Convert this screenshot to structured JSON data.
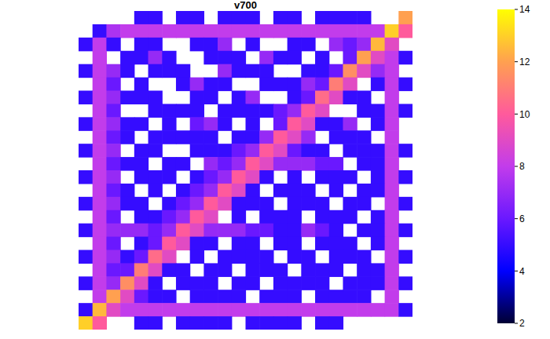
{
  "chart_data": {
    "type": "heatmap",
    "title": "v700",
    "tick_labels": false,
    "cells": [
      [
        null,
        null,
        null,
        null,
        5,
        5,
        null,
        5,
        5,
        null,
        5,
        5,
        5,
        null,
        5,
        5,
        null,
        5,
        5,
        5,
        5,
        null,
        null,
        12
      ],
      [
        null,
        5,
        7.5,
        8,
        8,
        8,
        8,
        8,
        8,
        8,
        8,
        8,
        8,
        8,
        8,
        8,
        8,
        8,
        8,
        8,
        8,
        8,
        13,
        10
      ],
      [
        5,
        8,
        5,
        null,
        5,
        5,
        null,
        null,
        5,
        5,
        7,
        null,
        5,
        null,
        null,
        5,
        5,
        null,
        7,
        6,
        7,
        12.5,
        9,
        null
      ],
      [
        null,
        8,
        null,
        5,
        5,
        7,
        5,
        null,
        null,
        5,
        5,
        5,
        null,
        7,
        5,
        5,
        null,
        5,
        null,
        6,
        12,
        9,
        8,
        5
      ],
      [
        5,
        8,
        7,
        5,
        null,
        5,
        5,
        5,
        null,
        null,
        7,
        5,
        5,
        5,
        null,
        null,
        5,
        5,
        6,
        11.5,
        9,
        7,
        8,
        null
      ],
      [
        null,
        8,
        6,
        null,
        5,
        null,
        null,
        5,
        7,
        5,
        5,
        null,
        null,
        5,
        5,
        5,
        7,
        6,
        11,
        9,
        null,
        5,
        8,
        5
      ],
      [
        5,
        8,
        7,
        5,
        5,
        5,
        null,
        null,
        5,
        5,
        null,
        5,
        7,
        null,
        null,
        5,
        6,
        10.5,
        9,
        5,
        5,
        null,
        8,
        null
      ],
      [
        null,
        8,
        6,
        null,
        null,
        5,
        5,
        5,
        5,
        null,
        5,
        5,
        5,
        5,
        6,
        7,
        10,
        9,
        null,
        null,
        5,
        5,
        8,
        5
      ],
      [
        5,
        8,
        7,
        5,
        5,
        null,
        5,
        null,
        6,
        7,
        5,
        null,
        5,
        null,
        6,
        10,
        9,
        5,
        5,
        7,
        null,
        5,
        8,
        null
      ],
      [
        null,
        8,
        6,
        5,
        null,
        5,
        5,
        5,
        5,
        5,
        null,
        5,
        5,
        7,
        10,
        9,
        7,
        null,
        5,
        5,
        5,
        null,
        8,
        null
      ],
      [
        5,
        8,
        7,
        null,
        5,
        5,
        null,
        null,
        5,
        5,
        5,
        6,
        7,
        10,
        9,
        6,
        5,
        5,
        null,
        5,
        5,
        5,
        8,
        5
      ],
      [
        null,
        8,
        6,
        5,
        5,
        null,
        5,
        5,
        null,
        7,
        6,
        7,
        10,
        9,
        7,
        7,
        7,
        6,
        6,
        null,
        5,
        5,
        8,
        null
      ],
      [
        5,
        8,
        7,
        null,
        5,
        5,
        5,
        null,
        5,
        6,
        7,
        10,
        9,
        5,
        null,
        5,
        null,
        5,
        5,
        5,
        null,
        5,
        8,
        5
      ],
      [
        null,
        8,
        6,
        5,
        null,
        5,
        null,
        5,
        6,
        7,
        10,
        9,
        5,
        null,
        5,
        5,
        5,
        null,
        5,
        null,
        5,
        5,
        8,
        null
      ],
      [
        5,
        8,
        7,
        5,
        5,
        null,
        5,
        6,
        7,
        10,
        9,
        5,
        5,
        5,
        null,
        5,
        5,
        5,
        null,
        5,
        5,
        null,
        8,
        5
      ],
      [
        null,
        8,
        6,
        null,
        5,
        5,
        6,
        7,
        10,
        9,
        null,
        5,
        null,
        5,
        5,
        5,
        null,
        5,
        5,
        5,
        null,
        5,
        8,
        null
      ],
      [
        5,
        8,
        7,
        7,
        7,
        6,
        7,
        10,
        9,
        7,
        7,
        7,
        6,
        6,
        5,
        5,
        7,
        6,
        5,
        null,
        5,
        5,
        8,
        5
      ],
      [
        null,
        8,
        6,
        null,
        5,
        6,
        10,
        9,
        5,
        5,
        null,
        5,
        5,
        null,
        5,
        5,
        null,
        5,
        5,
        5,
        null,
        5,
        8,
        null
      ],
      [
        5,
        8,
        7,
        5,
        6,
        10.5,
        9,
        null,
        5,
        null,
        5,
        5,
        5,
        5,
        null,
        5,
        5,
        null,
        5,
        5,
        5,
        null,
        8,
        5
      ],
      [
        null,
        8,
        6,
        6,
        11,
        9,
        5,
        5,
        null,
        5,
        5,
        null,
        5,
        5,
        5,
        null,
        5,
        5,
        5,
        null,
        5,
        5,
        8,
        null
      ],
      [
        5,
        8,
        7,
        11.5,
        9,
        5,
        null,
        5,
        5,
        5,
        null,
        5,
        5,
        null,
        5,
        5,
        5,
        5,
        null,
        5,
        5,
        5,
        8,
        5
      ],
      [
        null,
        8,
        12,
        9,
        6,
        5,
        5,
        null,
        5,
        5,
        5,
        5,
        null,
        5,
        5,
        5,
        null,
        5,
        5,
        5,
        5,
        null,
        8,
        null
      ],
      [
        5,
        12.5,
        9,
        8,
        8,
        8,
        8,
        8,
        8,
        8,
        8,
        8,
        8,
        8,
        8,
        8,
        8,
        8,
        8,
        8,
        8,
        8,
        8,
        5
      ],
      [
        13,
        10,
        null,
        null,
        5,
        5,
        null,
        5,
        5,
        5,
        5,
        null,
        5,
        5,
        5,
        5,
        null,
        5,
        5,
        null,
        null,
        null,
        null,
        null
      ]
    ],
    "colorbar": {
      "range": [
        2,
        14
      ],
      "ticks": [
        2,
        4,
        6,
        8,
        10,
        12,
        14
      ]
    }
  }
}
